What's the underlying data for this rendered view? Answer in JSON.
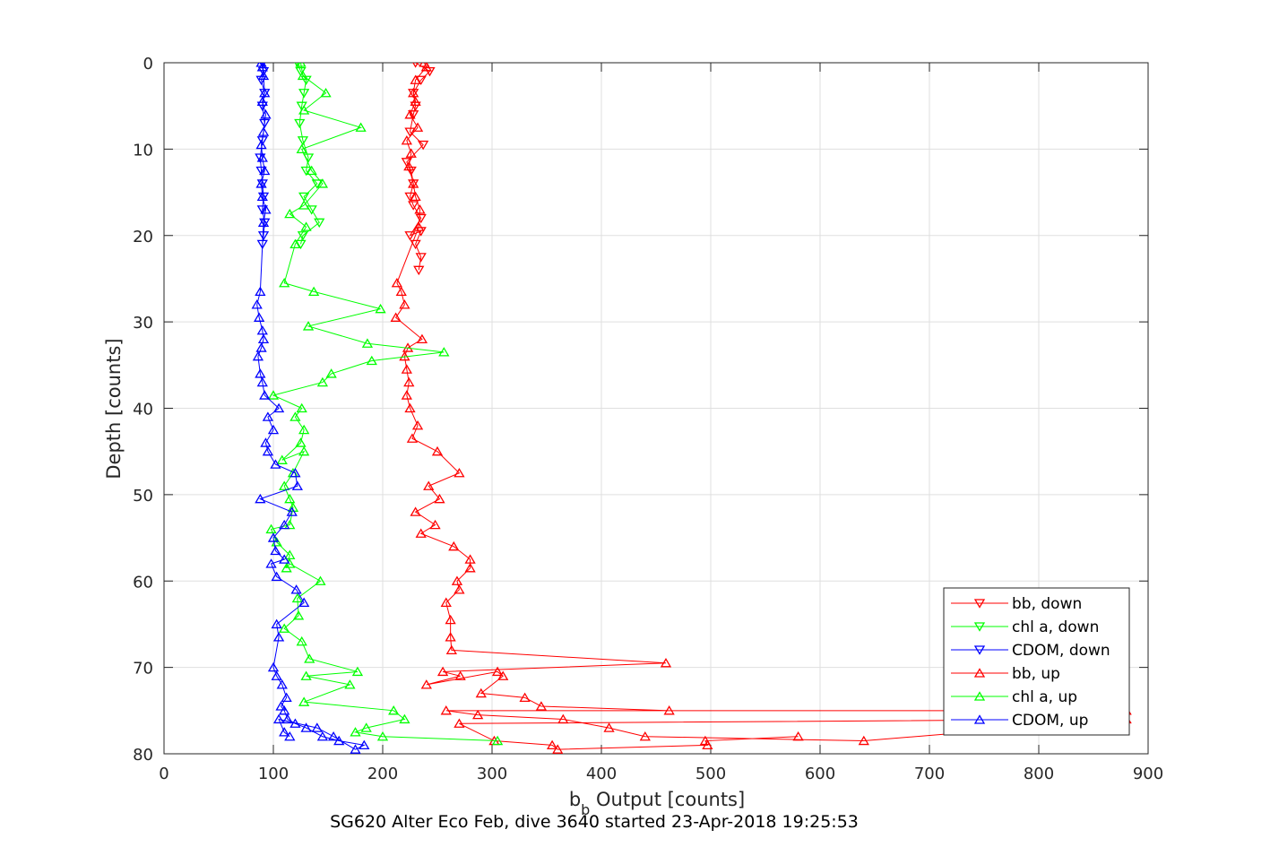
{
  "chart_data": {
    "type": "line",
    "title": "SG620 Alter Eco Feb, dive 3640 started 23-Apr-2018 19:25:53",
    "xlabel_main": "b",
    "xlabel_sub": "b",
    "xlabel_rest": " Output [counts]",
    "ylabel": "Depth [counts]",
    "xlim": [
      0,
      900
    ],
    "ylim": [
      0,
      80
    ],
    "y_reversed": true,
    "grid": true,
    "legend_position": "bottom-right",
    "x_ticks": [
      0,
      100,
      200,
      300,
      400,
      500,
      600,
      700,
      800,
      900
    ],
    "y_ticks": [
      0,
      10,
      20,
      30,
      40,
      50,
      60,
      70,
      80
    ],
    "series": [
      {
        "name": "bb, down",
        "color": "#ff0000",
        "marker": "down",
        "x": [
          230,
          243,
          235,
          228,
          230,
          228,
          225,
          237,
          222,
          226,
          228,
          225,
          228,
          235,
          225,
          235,
          230,
          235,
          233
        ],
        "y": [
          0,
          1,
          2,
          3.5,
          5,
          6,
          8,
          9.5,
          11.5,
          12.5,
          14,
          15.5,
          16.5,
          18,
          20,
          19.5,
          21,
          22.5,
          24
        ]
      },
      {
        "name": "chl a, down",
        "color": "#00ff00",
        "marker": "down",
        "x": [
          122,
          125,
          130,
          128,
          126,
          124,
          127,
          132,
          130,
          140,
          128,
          135,
          142,
          127,
          125
        ],
        "y": [
          0,
          1,
          2,
          3.5,
          5,
          7,
          9,
          11,
          12.5,
          14,
          15.5,
          17,
          18.5,
          20,
          21
        ]
      },
      {
        "name": "CDOM, down",
        "color": "#0000ff",
        "marker": "down",
        "x": [
          90,
          91,
          89,
          92,
          90,
          92,
          90,
          88,
          89,
          90,
          91,
          90,
          92,
          91,
          90
        ],
        "y": [
          0,
          1,
          2,
          3.5,
          5,
          7,
          9,
          11,
          12.5,
          14,
          15.5,
          17,
          18.5,
          20,
          21
        ]
      },
      {
        "name": "bb, up",
        "color": "#ff0000",
        "marker": "up",
        "x": [
          238,
          240,
          230,
          228,
          230,
          225,
          232,
          222,
          226,
          224,
          228,
          230,
          234,
          233,
          213,
          217,
          220,
          212,
          236,
          223,
          220,
          222,
          224,
          222,
          225,
          232,
          227,
          250,
          270,
          242,
          252,
          230,
          248,
          235,
          265,
          280,
          280,
          268,
          270,
          258,
          262,
          262,
          263,
          459,
          255,
          271,
          240,
          305,
          310,
          290,
          330,
          345,
          462,
          880,
          258,
          287,
          365,
          407,
          440,
          640,
          880,
          270,
          302,
          355,
          360,
          497,
          495,
          580
        ],
        "y": [
          0,
          0.5,
          2,
          3.5,
          4.5,
          6,
          7.5,
          9,
          10.5,
          12,
          14,
          15.5,
          17,
          19,
          25.5,
          26.5,
          28,
          29.5,
          32,
          33,
          34,
          35.5,
          37,
          38.5,
          40,
          42,
          43.5,
          45,
          47.5,
          49,
          50.5,
          52,
          53.5,
          54.5,
          56,
          57.5,
          58.5,
          60,
          61,
          62.5,
          64.5,
          66.5,
          68,
          69.5,
          70.5,
          71,
          72,
          70.5,
          71,
          73,
          73.5,
          74.5,
          75,
          75,
          75,
          75.5,
          76,
          77,
          78,
          78.5,
          76,
          76.5,
          78.5,
          79,
          79.5,
          79,
          78.5,
          78
        ]
      },
      {
        "name": "chl a, up",
        "color": "#00ff00",
        "marker": "up",
        "x": [
          125,
          127,
          148,
          128,
          180,
          126,
          135,
          145,
          128,
          115,
          130,
          120,
          110,
          137,
          198,
          132,
          186,
          256,
          190,
          153,
          145,
          100,
          126,
          120,
          128,
          125,
          108,
          128,
          118,
          110,
          115,
          118,
          115,
          98,
          103,
          115,
          112,
          115,
          143,
          122,
          123,
          110,
          126,
          133,
          177,
          130,
          170,
          128,
          210,
          220,
          185,
          175,
          200,
          305
        ],
        "y": [
          0,
          1.5,
          3.5,
          5.5,
          7.5,
          10,
          12.5,
          14,
          16.5,
          17.5,
          19,
          21,
          25.5,
          26.5,
          28.5,
          30.5,
          32.5,
          33.5,
          34.5,
          36,
          37,
          38.5,
          40,
          41,
          42.5,
          44,
          46,
          45,
          47.5,
          49,
          50.5,
          51.5,
          53.5,
          54,
          55.5,
          57,
          58.5,
          58,
          60,
          62,
          64,
          65.5,
          67,
          69,
          70.5,
          71,
          72,
          74,
          75,
          76,
          77,
          77.5,
          78,
          78.5
        ]
      },
      {
        "name": "CDOM, up",
        "color": "#0000ff",
        "marker": "up",
        "x": [
          89,
          90,
          91,
          92,
          90,
          93,
          91,
          89,
          90,
          92,
          89,
          90,
          93,
          91,
          88,
          85,
          87,
          90,
          91,
          89,
          86,
          88,
          90,
          92,
          105,
          95,
          100,
          93,
          95,
          102,
          120,
          122,
          88,
          117,
          110,
          100,
          102,
          110,
          98,
          103,
          121,
          128,
          103,
          105,
          100,
          103,
          108,
          112,
          107,
          110,
          113,
          120,
          130,
          145,
          160,
          183,
          175,
          155,
          140,
          105,
          110,
          115
        ],
        "y": [
          0,
          0.5,
          1.5,
          3.5,
          4.5,
          6,
          8,
          9.5,
          11,
          12.5,
          14,
          15.5,
          17,
          18.5,
          26.5,
          28,
          29.5,
          31,
          32,
          33,
          34,
          36,
          37,
          38.5,
          40,
          41,
          42.5,
          44,
          45,
          46.5,
          47.5,
          49,
          50.5,
          52,
          53.5,
          55,
          56.5,
          57.5,
          58,
          59.5,
          61,
          62.5,
          65,
          66.5,
          70,
          71,
          72,
          73.5,
          74.5,
          75,
          76,
          76.5,
          77,
          78,
          78.5,
          79,
          79.5,
          78,
          77,
          76,
          77.5,
          78
        ]
      }
    ]
  }
}
